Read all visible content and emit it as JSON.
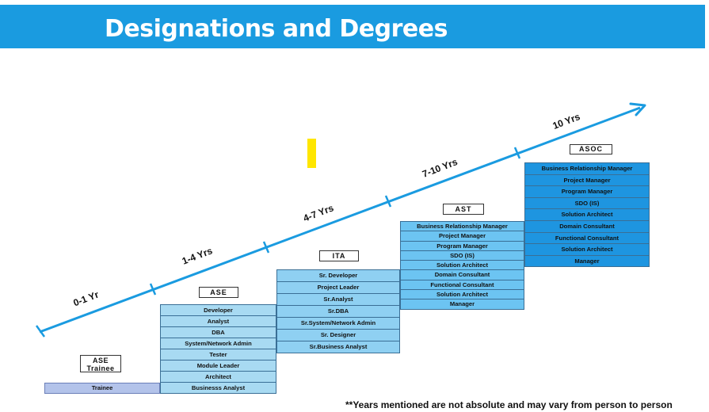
{
  "title": "Designations and Degrees",
  "colors": {
    "banner": "#1a9be0",
    "arrow": "#1a9be0",
    "marker": "#ffe600"
  },
  "timeline": {
    "labels": [
      "0-1 Yr",
      "1-4 Yrs",
      "4-7 Yrs",
      "7-10 Yrs",
      "10 Yrs"
    ]
  },
  "levels": {
    "trainee": {
      "label_line1": "ASE",
      "label_line2": "Trainee",
      "rows": [
        "Trainee"
      ],
      "color": "#b3c3ea"
    },
    "ase": {
      "label": "ASE",
      "color": "#a8daf2",
      "rows": [
        "Developer",
        "Analyst",
        "DBA",
        "System/Network Admin",
        "Tester",
        "Module Leader",
        "Architect",
        "Businesss Analyst"
      ]
    },
    "ita": {
      "label": "ITA",
      "color": "#8fd0f2",
      "rows": [
        "Sr. Developer",
        "Project Leader",
        "Sr.Analyst",
        "Sr.DBA",
        "Sr.System/Network Admin",
        "Sr. Designer",
        "Sr.Business Analyst"
      ]
    },
    "ast": {
      "label": "AST",
      "color": "#6cc4f2",
      "rows": [
        "Business Relationship Manager",
        "Project Manager",
        "Program Manager",
        "SDO (IS)",
        "Solution Architect",
        "Domain Consultant",
        "Functional Consultant",
        "Solution Architect",
        "Manager"
      ]
    },
    "asoc": {
      "label": "ASOC",
      "color": "#1e95e0",
      "rows": [
        "Business Relationship Manager",
        "Project Manager",
        "Program Manager",
        "SDO (IS)",
        "Solution Architect",
        "Domain Consultant",
        "Functional Consultant",
        "Solution Architect",
        "Manager"
      ]
    }
  },
  "footnote": "**Years mentioned are not absolute and may vary from person to person"
}
